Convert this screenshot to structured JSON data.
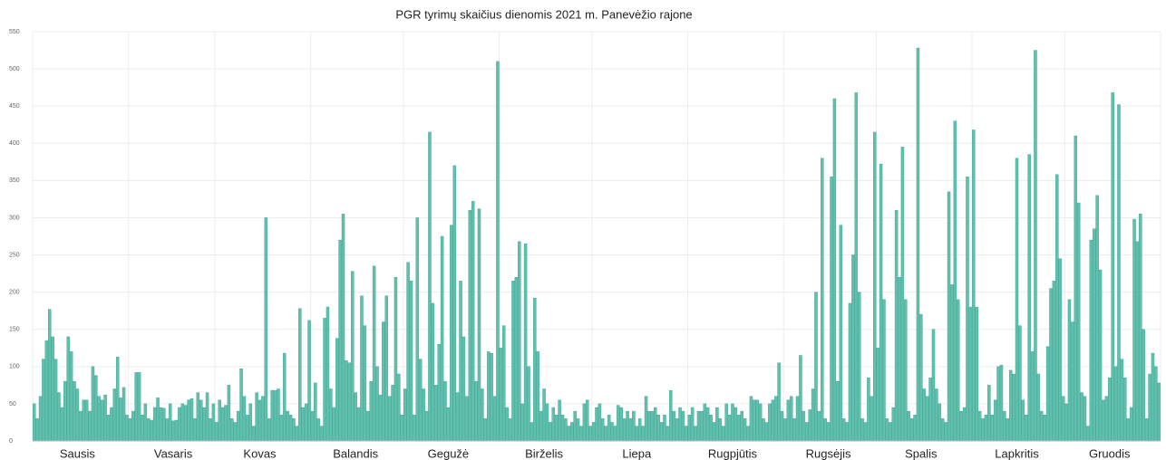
{
  "chart_data": {
    "type": "bar",
    "title": "PGR tyrimų skaičius dienomis 2021 m. Panevėžio rajone",
    "color": "#5fc0ae",
    "grid": true,
    "ylim": [
      0,
      550
    ],
    "yticks": [
      0,
      50,
      100,
      150,
      200,
      250,
      300,
      350,
      400,
      450,
      500,
      550
    ],
    "categories": [
      null,
      null,
      null,
      null,
      null,
      null,
      null,
      null,
      null,
      null,
      null,
      null,
      null,
      null,
      "Sausis",
      null,
      null,
      null,
      null,
      null,
      null,
      null,
      null,
      null,
      null,
      null,
      null,
      null,
      null,
      null,
      null,
      null,
      null,
      null,
      null,
      null,
      null,
      null,
      null,
      null,
      null,
      null,
      null,
      null,
      null,
      "Vasaris",
      null,
      null,
      null,
      null,
      null,
      null,
      null,
      null,
      null,
      null,
      null,
      null,
      null,
      null,
      null,
      null,
      null,
      null,
      null,
      null,
      null,
      null,
      null,
      null,
      null,
      null,
      null,
      "Kovas",
      null,
      null,
      null,
      null,
      null,
      null,
      null,
      null,
      null,
      null,
      null,
      null,
      null,
      null,
      null,
      null,
      null,
      null,
      null,
      null,
      null,
      null,
      null,
      null,
      null,
      null,
      null,
      null,
      null,
      null,
      "Balandis",
      null,
      null,
      null,
      null,
      null,
      null,
      null,
      null,
      null,
      null,
      null,
      null,
      null,
      null,
      null,
      null,
      null,
      null,
      null,
      null,
      null,
      null,
      null,
      null,
      null,
      null,
      null,
      null,
      null,
      "Gegužė",
      null,
      null,
      null,
      null,
      null,
      null,
      null,
      null,
      null,
      null,
      null,
      null,
      null,
      null,
      null,
      null,
      null,
      null,
      null,
      null,
      null,
      null,
      null,
      null,
      null,
      null,
      null,
      null,
      null,
      null,
      "Birželis",
      null,
      null,
      null,
      null,
      null,
      null,
      null,
      null,
      null,
      null,
      null,
      null,
      null,
      null,
      null,
      null,
      null,
      null,
      null,
      null,
      null,
      null,
      null,
      null,
      null,
      null,
      null,
      null,
      null,
      "Liepa",
      null,
      null,
      null,
      null,
      null,
      null,
      null,
      null,
      null,
      null,
      null,
      null,
      null,
      null,
      null,
      null,
      null,
      null,
      null,
      null,
      null,
      null,
      null,
      null,
      null,
      null,
      null,
      null,
      null,
      null,
      "Rugpjūtis",
      null,
      null,
      null,
      null,
      null,
      null,
      null,
      null,
      null,
      null,
      null,
      null,
      null,
      null,
      null,
      null,
      null,
      null,
      null,
      null,
      null,
      null,
      null,
      null,
      null,
      null,
      null,
      null,
      null,
      null,
      "Rugsėjis",
      null,
      null,
      null,
      null,
      null,
      null,
      null,
      null,
      null,
      null,
      null,
      null,
      null,
      null,
      null,
      null,
      null,
      null,
      null,
      null,
      null,
      null,
      null,
      null,
      null,
      null,
      null,
      null,
      null,
      "Spalis",
      null,
      null,
      null,
      null,
      null,
      null,
      null,
      null,
      null,
      null,
      null,
      null,
      null,
      null,
      null,
      null,
      null,
      null,
      null,
      null,
      null,
      null,
      null,
      null,
      null,
      null,
      null,
      null,
      null,
      null,
      "Lapkritis",
      null,
      null,
      null,
      null,
      null,
      null,
      null,
      null,
      null,
      null,
      null,
      null,
      null,
      null,
      null,
      null,
      null,
      null,
      null,
      null,
      null,
      null,
      null,
      null,
      null,
      null,
      null,
      null,
      null,
      "Gruodis",
      null,
      null,
      null,
      null,
      null,
      null,
      null,
      null,
      null,
      null,
      null,
      null,
      null,
      null,
      null,
      null
    ],
    "values": [
      50,
      30,
      60,
      110,
      135,
      177,
      140,
      110,
      65,
      45,
      80,
      140,
      120,
      80,
      70,
      40,
      55,
      55,
      40,
      100,
      88,
      60,
      55,
      62,
      35,
      45,
      70,
      113,
      58,
      72,
      35,
      30,
      40,
      92,
      92,
      35,
      50,
      30,
      28,
      45,
      58,
      45,
      44,
      30,
      50,
      27,
      28,
      45,
      50,
      48,
      55,
      57,
      30,
      65,
      55,
      45,
      65,
      30,
      50,
      25,
      55,
      45,
      48,
      75,
      30,
      25,
      40,
      97,
      60,
      35,
      50,
      20,
      65,
      55,
      60,
      300,
      30,
      68,
      68,
      70,
      35,
      118,
      40,
      35,
      30,
      20,
      178,
      45,
      50,
      162,
      40,
      78,
      30,
      20,
      165,
      180,
      70,
      45,
      138,
      270,
      305,
      108,
      105,
      228,
      65,
      45,
      195,
      155,
      40,
      80,
      235,
      100,
      62,
      160,
      195,
      60,
      75,
      220,
      90,
      35,
      70,
      240,
      215,
      35,
      300,
      110,
      70,
      40,
      415,
      185,
      75,
      130,
      275,
      80,
      45,
      290,
      370,
      65,
      215,
      140,
      60,
      310,
      322,
      80,
      312,
      70,
      30,
      120,
      118,
      60,
      510,
      125,
      155,
      45,
      30,
      215,
      220,
      268,
      50,
      265,
      100,
      25,
      192,
      120,
      40,
      70,
      50,
      25,
      45,
      35,
      55,
      35,
      30,
      20,
      25,
      40,
      30,
      20,
      50,
      55,
      20,
      25,
      45,
      50,
      30,
      20,
      35,
      25,
      20,
      48,
      45,
      30,
      40,
      30,
      40,
      20,
      30,
      20,
      60,
      40,
      40,
      45,
      35,
      25,
      35,
      20,
      68,
      40,
      30,
      45,
      40,
      20,
      35,
      45,
      20,
      40,
      40,
      50,
      45,
      35,
      25,
      45,
      30,
      20,
      50,
      35,
      50,
      45,
      35,
      40,
      30,
      20,
      60,
      55,
      55,
      50,
      30,
      25,
      50,
      55,
      60,
      105,
      40,
      30,
      55,
      60,
      30,
      60,
      115,
      40,
      25,
      42,
      70,
      200,
      40,
      380,
      30,
      25,
      355,
      460,
      80,
      290,
      30,
      25,
      185,
      250,
      468,
      200,
      30,
      25,
      85,
      60,
      415,
      125,
      372,
      190,
      30,
      25,
      45,
      310,
      220,
      395,
      190,
      40,
      30,
      35,
      528,
      170,
      70,
      60,
      85,
      150,
      70,
      50,
      30,
      25,
      335,
      210,
      430,
      190,
      40,
      45,
      355,
      180,
      418,
      180,
      40,
      30,
      35,
      75,
      35,
      55,
      100,
      102,
      40,
      30,
      95,
      90,
      380,
      155,
      55,
      35,
      385,
      120,
      525,
      90,
      40,
      35,
      127,
      205,
      215,
      358,
      245,
      60,
      50,
      190,
      160,
      410,
      320,
      65,
      60,
      20,
      270,
      285,
      330,
      230,
      55,
      60,
      85,
      468,
      100,
      452,
      110,
      85,
      30,
      45,
      298,
      268,
      305,
      150,
      30,
      90,
      118,
      100,
      78
    ]
  }
}
